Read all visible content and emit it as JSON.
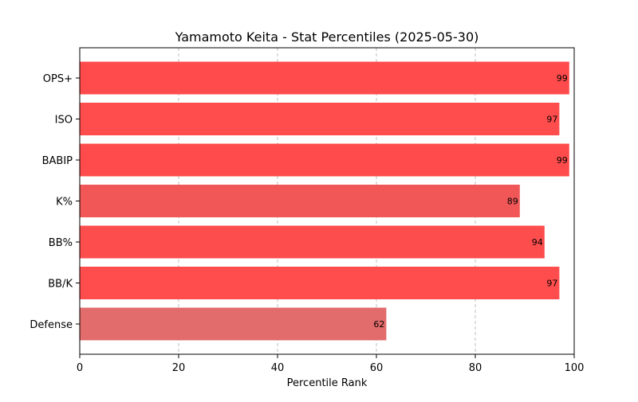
{
  "chart_data": {
    "type": "bar",
    "orientation": "horizontal",
    "title": "Yamamoto Keita - Stat Percentiles (2025-05-30)",
    "xlabel": "Percentile Rank",
    "ylabel": "",
    "xlim": [
      0,
      100
    ],
    "xticks": [
      0,
      20,
      40,
      60,
      80,
      100
    ],
    "grid": "x-dashed",
    "legend": "none",
    "categories": [
      "OPS+",
      "ISO",
      "BABIP",
      "K%",
      "BB%",
      "BB/K",
      "Defense"
    ],
    "values": [
      99,
      97,
      99,
      89,
      94,
      97,
      62
    ],
    "colors": [
      "#ff4b4b",
      "#ff4d4d",
      "#ff4b4b",
      "#f15757",
      "#fe4d4d",
      "#ff4d4d",
      "#e26b6b"
    ]
  }
}
